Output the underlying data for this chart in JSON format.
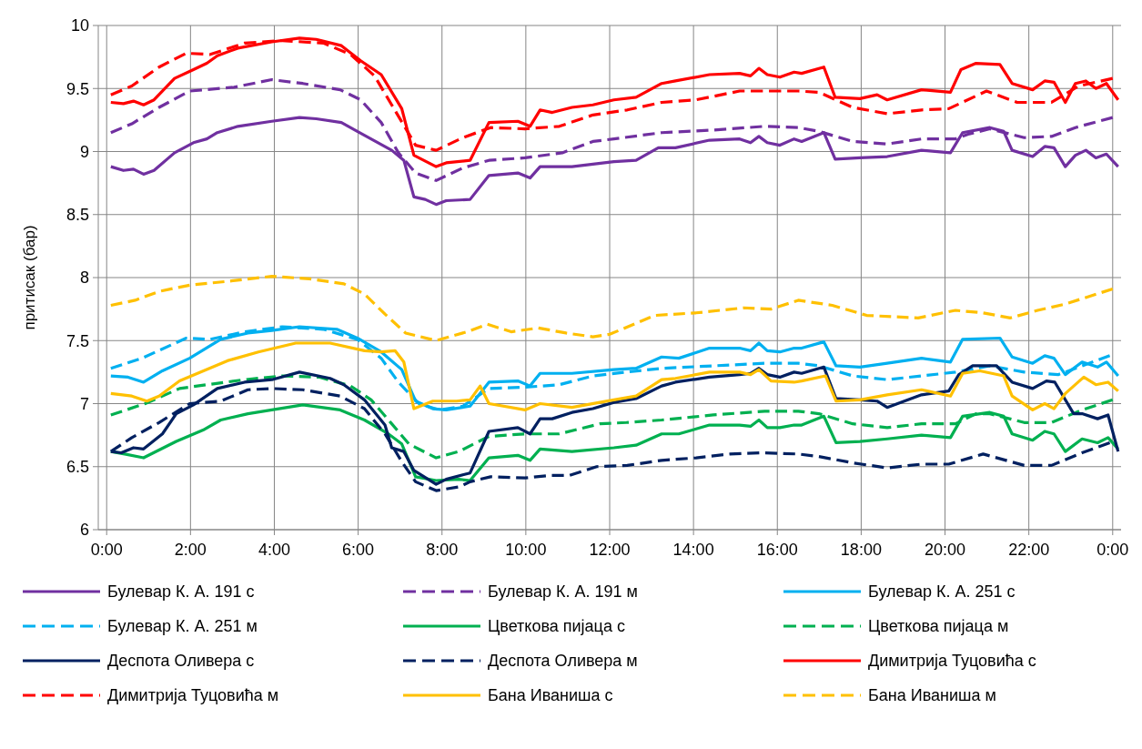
{
  "chart_data": {
    "type": "line",
    "ylabel": "притисак (бар)",
    "xlim": [
      -0.2,
      24.2
    ],
    "ylim": [
      6,
      10
    ],
    "xticks": [
      {
        "value": 0,
        "label": "0:00"
      },
      {
        "value": 2,
        "label": "2:00"
      },
      {
        "value": 4,
        "label": "4:00"
      },
      {
        "value": 6,
        "label": "6:00"
      },
      {
        "value": 8,
        "label": "8:00"
      },
      {
        "value": 10,
        "label": "10:00"
      },
      {
        "value": 12,
        "label": "12:00"
      },
      {
        "value": 14,
        "label": "14:00"
      },
      {
        "value": 16,
        "label": "16:00"
      },
      {
        "value": 18,
        "label": "18:00"
      },
      {
        "value": 20,
        "label": "20:00"
      },
      {
        "value": 22,
        "label": "22:00"
      },
      {
        "value": 24,
        "label": "0:00"
      }
    ],
    "yticks": [
      6,
      6.5,
      7,
      7.5,
      8,
      8.5,
      9,
      9.5,
      10
    ],
    "grid": true,
    "legend": "bottom",
    "series": [
      {
        "name": "Булевар К. А. 191 с",
        "color": "#7030a0",
        "line_style": "solid",
        "x": [
          0.1,
          0.4,
          0.64,
          0.88,
          1.13,
          1.62,
          2.07,
          2.39,
          2.64,
          3.13,
          3.94,
          4.6,
          5.0,
          5.6,
          5.98,
          6.8,
          7.09,
          7.33,
          7.6,
          7.86,
          8.1,
          8.67,
          9.12,
          9.81,
          10.1,
          10.34,
          11.1,
          11.6,
          12.1,
          12.63,
          13.16,
          13.57,
          14.38,
          15.1,
          15.36,
          15.56,
          15.76,
          16.06,
          16.4,
          16.58,
          17.11,
          17.38,
          17.97,
          18.62,
          19.44,
          20.13,
          20.42,
          21.07,
          21.4,
          21.6,
          22.09,
          22.38,
          22.6,
          22.87,
          23.11,
          23.36,
          23.6,
          23.85,
          24.13
        ],
        "values": [
          8.88,
          8.85,
          8.86,
          8.82,
          8.85,
          8.99,
          9.07,
          9.1,
          9.15,
          9.2,
          9.24,
          9.27,
          9.26,
          9.23,
          9.16,
          9.01,
          8.93,
          8.64,
          8.62,
          8.58,
          8.61,
          8.62,
          8.81,
          8.83,
          8.79,
          8.88,
          8.88,
          8.9,
          8.92,
          8.93,
          9.03,
          9.03,
          9.09,
          9.1,
          9.07,
          9.12,
          9.07,
          9.05,
          9.1,
          9.08,
          9.15,
          8.94,
          8.95,
          8.96,
          9.01,
          8.99,
          9.15,
          9.19,
          9.16,
          9.01,
          8.96,
          9.04,
          9.03,
          8.88,
          8.97,
          9.01,
          8.95,
          8.98,
          8.88
        ]
      },
      {
        "name": "Булевар К. А. 191 м",
        "color": "#7030a0",
        "line_style": "dashed",
        "x": [
          0.1,
          0.6,
          1.25,
          1.98,
          3.04,
          3.94,
          4.68,
          5.57,
          6.06,
          6.55,
          6.96,
          7.37,
          7.86,
          8.5,
          9.12,
          9.98,
          10.87,
          11.6,
          12.1,
          13.24,
          14.47,
          15.7,
          16.5,
          16.99,
          17.8,
          18.62,
          19.44,
          20.25,
          20.58,
          21.07,
          21.89,
          22.54,
          23.11,
          24.0
        ],
        "values": [
          9.15,
          9.22,
          9.35,
          9.48,
          9.51,
          9.57,
          9.54,
          9.49,
          9.41,
          9.23,
          8.99,
          8.83,
          8.77,
          8.87,
          8.93,
          8.95,
          8.99,
          9.08,
          9.1,
          9.15,
          9.17,
          9.2,
          9.19,
          9.16,
          9.08,
          9.06,
          9.1,
          9.1,
          9.14,
          9.18,
          9.11,
          9.12,
          9.19,
          9.27
        ]
      },
      {
        "name": "Булевар К. А. 251 с",
        "color": "#00b0f0",
        "line_style": "solid",
        "x": [
          0.1,
          0.51,
          0.88,
          1.33,
          1.98,
          2.72,
          3.37,
          3.94,
          4.6,
          5.49,
          5.98,
          6.55,
          7.04,
          7.37,
          7.78,
          8.1,
          8.67,
          9.12,
          9.81,
          10.1,
          10.34,
          11.1,
          12.1,
          12.63,
          13.24,
          13.65,
          14.38,
          15.1,
          15.36,
          15.56,
          15.76,
          16.06,
          16.4,
          16.58,
          17.11,
          17.4,
          17.97,
          18.62,
          19.44,
          20.13,
          20.42,
          21.31,
          21.6,
          22.09,
          22.38,
          22.6,
          22.87,
          23.27,
          23.64,
          23.85,
          24.13
        ],
        "values": [
          7.22,
          7.21,
          7.17,
          7.26,
          7.36,
          7.51,
          7.56,
          7.58,
          7.61,
          7.59,
          7.52,
          7.41,
          7.27,
          7.02,
          6.96,
          6.95,
          6.98,
          7.17,
          7.18,
          7.14,
          7.24,
          7.24,
          7.27,
          7.28,
          7.37,
          7.36,
          7.44,
          7.44,
          7.42,
          7.48,
          7.42,
          7.41,
          7.44,
          7.44,
          7.49,
          7.3,
          7.29,
          7.32,
          7.36,
          7.33,
          7.51,
          7.52,
          7.37,
          7.32,
          7.38,
          7.36,
          7.23,
          7.33,
          7.29,
          7.33,
          7.22
        ]
      },
      {
        "name": "Булевар К. А. 251 м",
        "color": "#00b0f0",
        "line_style": "dashed",
        "x": [
          0.1,
          0.84,
          1.9,
          2.47,
          3.29,
          4.19,
          5.17,
          5.98,
          6.55,
          6.96,
          7.45,
          7.94,
          8.5,
          9.12,
          9.98,
          10.8,
          11.6,
          12.4,
          13.24,
          14.47,
          15.7,
          16.5,
          16.99,
          17.8,
          18.62,
          19.44,
          20.25,
          21.07,
          21.89,
          22.7,
          23.93
        ],
        "values": [
          7.28,
          7.36,
          7.52,
          7.51,
          7.57,
          7.61,
          7.59,
          7.51,
          7.36,
          7.17,
          7.0,
          6.95,
          6.98,
          7.12,
          7.13,
          7.15,
          7.22,
          7.25,
          7.28,
          7.3,
          7.32,
          7.32,
          7.3,
          7.22,
          7.19,
          7.22,
          7.25,
          7.3,
          7.25,
          7.23,
          7.38
        ]
      },
      {
        "name": "Цветкова пијаца с",
        "color": "#00b050",
        "line_style": "solid",
        "x": [
          0.1,
          0.43,
          0.88,
          1.66,
          2.3,
          2.72,
          3.37,
          3.94,
          4.68,
          5.57,
          6.15,
          6.72,
          7.04,
          7.37,
          7.86,
          8.4,
          8.67,
          9.12,
          9.81,
          10.1,
          10.34,
          11.1,
          12.1,
          12.63,
          13.24,
          13.65,
          14.38,
          15.1,
          15.36,
          15.56,
          15.76,
          16.06,
          16.4,
          16.58,
          17.11,
          17.4,
          17.97,
          18.62,
          19.44,
          20.13,
          20.42,
          21.07,
          21.4,
          21.6,
          22.09,
          22.38,
          22.6,
          22.87,
          23.27,
          23.64,
          23.89,
          24.13
        ],
        "values": [
          6.62,
          6.6,
          6.57,
          6.7,
          6.79,
          6.87,
          6.92,
          6.95,
          6.99,
          6.95,
          6.87,
          6.76,
          6.68,
          6.42,
          6.39,
          6.4,
          6.39,
          6.57,
          6.59,
          6.55,
          6.64,
          6.62,
          6.65,
          6.67,
          6.76,
          6.76,
          6.83,
          6.83,
          6.82,
          6.87,
          6.81,
          6.81,
          6.83,
          6.83,
          6.9,
          6.69,
          6.7,
          6.72,
          6.75,
          6.73,
          6.9,
          6.93,
          6.9,
          6.76,
          6.71,
          6.78,
          6.76,
          6.62,
          6.72,
          6.69,
          6.73,
          6.64
        ]
      },
      {
        "name": "Цветкова пијаца м",
        "color": "#00b050",
        "line_style": "dashed",
        "x": [
          0.1,
          0.92,
          1.74,
          2.39,
          3.29,
          4.19,
          5.08,
          5.82,
          6.31,
          6.8,
          7.21,
          7.86,
          8.4,
          9.12,
          9.98,
          10.8,
          11.77,
          12.4,
          13.24,
          14.47,
          15.7,
          16.5,
          16.99,
          17.8,
          18.62,
          19.44,
          20.25,
          20.74,
          21.07,
          21.89,
          22.54,
          23.27,
          24.0
        ],
        "values": [
          6.91,
          7.0,
          7.12,
          7.15,
          7.19,
          7.22,
          7.21,
          7.14,
          7.03,
          6.84,
          6.68,
          6.57,
          6.62,
          6.74,
          6.76,
          6.76,
          6.84,
          6.85,
          6.87,
          6.91,
          6.94,
          6.94,
          6.92,
          6.84,
          6.81,
          6.84,
          6.84,
          6.92,
          6.92,
          6.85,
          6.85,
          6.95,
          7.03
        ]
      },
      {
        "name": "Деспота Оливера с",
        "color": "#002060",
        "line_style": "solid",
        "x": [
          0.1,
          0.35,
          0.64,
          0.88,
          1.33,
          1.66,
          2.07,
          2.64,
          3.29,
          3.94,
          4.6,
          5.33,
          5.66,
          6.15,
          6.64,
          6.8,
          7.09,
          7.33,
          7.86,
          8.1,
          8.67,
          9.12,
          9.81,
          10.1,
          10.34,
          10.63,
          11.1,
          11.6,
          12.1,
          12.63,
          13.24,
          13.57,
          14.38,
          15.1,
          15.36,
          15.56,
          15.76,
          16.06,
          16.4,
          16.58,
          17.11,
          17.4,
          17.97,
          18.38,
          18.62,
          19.44,
          20.09,
          20.33,
          20.66,
          21.23,
          21.6,
          22.09,
          22.42,
          22.62,
          23.07,
          23.27,
          23.64,
          23.89,
          24.13
        ],
        "values": [
          6.62,
          6.61,
          6.65,
          6.64,
          6.76,
          6.92,
          6.99,
          7.12,
          7.17,
          7.19,
          7.25,
          7.2,
          7.15,
          7.03,
          6.83,
          6.65,
          6.62,
          6.47,
          6.36,
          6.4,
          6.45,
          6.78,
          6.81,
          6.76,
          6.88,
          6.88,
          6.93,
          6.96,
          7.01,
          7.04,
          7.14,
          7.17,
          7.21,
          7.23,
          7.24,
          7.28,
          7.23,
          7.21,
          7.25,
          7.24,
          7.29,
          7.04,
          7.03,
          7.02,
          6.97,
          7.07,
          7.1,
          7.23,
          7.3,
          7.3,
          7.17,
          7.12,
          7.18,
          7.17,
          6.92,
          6.92,
          6.88,
          6.91,
          6.62
        ]
      },
      {
        "name": "Деспота Оливера м",
        "color": "#002060",
        "line_style": "dashed",
        "x": [
          0.1,
          0.6,
          1.25,
          1.98,
          2.72,
          3.37,
          3.94,
          4.68,
          5.57,
          6.15,
          6.64,
          7.04,
          7.37,
          7.86,
          8.42,
          8.67,
          9.16,
          9.98,
          10.55,
          11.04,
          11.69,
          12.42,
          13.24,
          14.06,
          14.87,
          15.69,
          16.5,
          16.99,
          17.8,
          18.62,
          19.44,
          20.09,
          20.91,
          21.89,
          22.54,
          23.27,
          23.93
        ],
        "values": [
          6.62,
          6.73,
          6.85,
          7.0,
          7.02,
          7.11,
          7.12,
          7.11,
          7.06,
          6.96,
          6.76,
          6.54,
          6.38,
          6.31,
          6.34,
          6.38,
          6.42,
          6.41,
          6.43,
          6.43,
          6.5,
          6.51,
          6.55,
          6.57,
          6.6,
          6.61,
          6.6,
          6.58,
          6.53,
          6.49,
          6.52,
          6.52,
          6.6,
          6.51,
          6.51,
          6.61,
          6.69
        ]
      },
      {
        "name": "Димитрија Туцовића с",
        "color": "#ff0000",
        "line_style": "solid",
        "x": [
          0.1,
          0.4,
          0.64,
          0.88,
          1.13,
          1.62,
          2.07,
          2.39,
          2.64,
          3.13,
          3.94,
          4.6,
          5.0,
          5.6,
          6.06,
          6.55,
          7.04,
          7.33,
          7.86,
          8.1,
          8.67,
          9.12,
          9.81,
          10.1,
          10.34,
          10.63,
          11.1,
          11.6,
          12.1,
          12.63,
          13.24,
          13.57,
          14.38,
          15.1,
          15.36,
          15.56,
          15.76,
          16.06,
          16.4,
          16.58,
          17.11,
          17.38,
          17.97,
          18.38,
          18.62,
          19.44,
          20.13,
          20.38,
          20.74,
          21.31,
          21.6,
          22.09,
          22.38,
          22.6,
          22.87,
          23.11,
          23.36,
          23.6,
          23.85,
          24.13
        ],
        "values": [
          9.39,
          9.38,
          9.4,
          9.37,
          9.41,
          9.58,
          9.65,
          9.7,
          9.76,
          9.82,
          9.87,
          9.9,
          9.89,
          9.84,
          9.72,
          9.61,
          9.34,
          8.97,
          8.88,
          8.91,
          8.93,
          9.23,
          9.24,
          9.2,
          9.33,
          9.31,
          9.35,
          9.37,
          9.41,
          9.43,
          9.54,
          9.56,
          9.61,
          9.62,
          9.6,
          9.66,
          9.61,
          9.59,
          9.63,
          9.62,
          9.67,
          9.43,
          9.42,
          9.45,
          9.41,
          9.49,
          9.47,
          9.65,
          9.7,
          9.69,
          9.54,
          9.49,
          9.56,
          9.55,
          9.39,
          9.54,
          9.56,
          9.5,
          9.54,
          9.41
        ]
      },
      {
        "name": "Димитрија Туцовића м",
        "color": "#ff0000",
        "line_style": "dashed",
        "x": [
          0.1,
          0.6,
          1.25,
          1.9,
          2.47,
          3.29,
          4.19,
          5.17,
          5.82,
          6.39,
          6.8,
          7.37,
          7.86,
          8.5,
          9.16,
          9.98,
          10.8,
          11.6,
          12.42,
          13.24,
          14.06,
          15.1,
          16.5,
          16.99,
          17.8,
          18.62,
          19.44,
          20.09,
          20.99,
          21.72,
          22.54,
          23.19,
          24.0
        ],
        "values": [
          9.45,
          9.52,
          9.67,
          9.78,
          9.77,
          9.86,
          9.88,
          9.86,
          9.77,
          9.6,
          9.37,
          9.05,
          9.01,
          9.11,
          9.19,
          9.18,
          9.2,
          9.29,
          9.33,
          9.39,
          9.41,
          9.48,
          9.48,
          9.47,
          9.35,
          9.3,
          9.33,
          9.34,
          9.48,
          9.39,
          9.39,
          9.52,
          9.58
        ]
      },
      {
        "name": "Бана Иваниша с",
        "color": "#ffc000",
        "line_style": "solid",
        "x": [
          0.1,
          0.6,
          0.96,
          1.25,
          1.74,
          2.31,
          2.88,
          3.62,
          4.51,
          5.33,
          6.15,
          6.55,
          6.88,
          7.09,
          7.33,
          7.78,
          8.35,
          8.67,
          8.91,
          9.12,
          9.98,
          10.34,
          11.1,
          12.1,
          12.63,
          13.24,
          13.57,
          14.38,
          15.1,
          15.36,
          15.56,
          15.85,
          16.4,
          16.58,
          17.15,
          17.4,
          17.97,
          18.62,
          19.44,
          20.13,
          20.42,
          20.83,
          21.4,
          21.6,
          22.09,
          22.38,
          22.6,
          22.87,
          23.31,
          23.6,
          23.89,
          24.13
        ],
        "values": [
          7.08,
          7.06,
          7.02,
          7.06,
          7.18,
          7.26,
          7.34,
          7.41,
          7.48,
          7.48,
          7.42,
          7.41,
          7.42,
          7.33,
          6.96,
          7.02,
          7.02,
          7.03,
          7.14,
          7.0,
          6.95,
          7.0,
          6.97,
          7.03,
          7.06,
          7.19,
          7.2,
          7.25,
          7.25,
          7.23,
          7.27,
          7.18,
          7.17,
          7.18,
          7.22,
          7.02,
          7.03,
          7.07,
          7.11,
          7.06,
          7.24,
          7.26,
          7.22,
          7.06,
          6.95,
          7.0,
          6.96,
          7.08,
          7.21,
          7.15,
          7.17,
          7.1
        ]
      },
      {
        "name": "Бана Иваниша м",
        "color": "#ffc000",
        "line_style": "dashed",
        "x": [
          0.1,
          0.68,
          1.25,
          1.98,
          2.88,
          3.94,
          4.84,
          5.66,
          6.15,
          6.64,
          7.13,
          7.86,
          8.6,
          9.08,
          9.65,
          10.3,
          10.96,
          11.6,
          12.0,
          13.08,
          14.06,
          15.2,
          15.85,
          16.5,
          17.31,
          18.13,
          19.36,
          20.25,
          20.91,
          21.56,
          22.21,
          22.87,
          24.0
        ],
        "values": [
          7.78,
          7.82,
          7.89,
          7.94,
          7.97,
          8.01,
          7.99,
          7.95,
          7.87,
          7.71,
          7.56,
          7.5,
          7.57,
          7.63,
          7.57,
          7.6,
          7.56,
          7.53,
          7.55,
          7.7,
          7.72,
          7.76,
          7.75,
          7.82,
          7.78,
          7.7,
          7.68,
          7.74,
          7.72,
          7.68,
          7.74,
          7.79,
          7.91
        ]
      }
    ]
  }
}
